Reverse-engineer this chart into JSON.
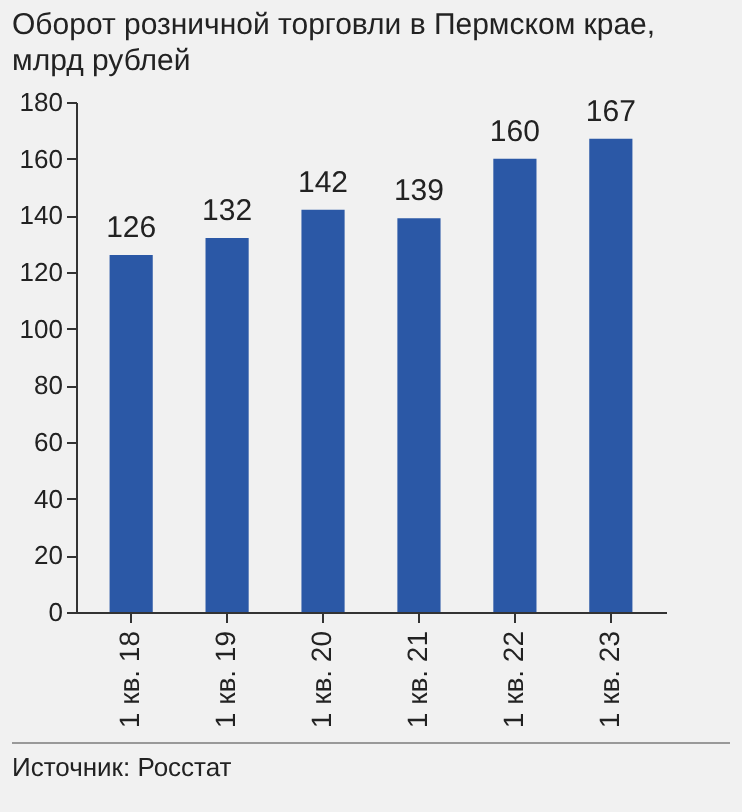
{
  "chart_data": {
    "type": "bar",
    "title": "Оборот розничной торговли в Пермском крае, млрд рублей",
    "categories": [
      "1 кв. 18",
      "1 кв. 19",
      "1 кв. 20",
      "1 кв. 21",
      "1 кв. 22",
      "1 кв. 23"
    ],
    "values": [
      126,
      132,
      142,
      139,
      160,
      167
    ],
    "color": "#2b58a6",
    "ylim": [
      0,
      180
    ],
    "yticks": [
      0,
      20,
      40,
      60,
      80,
      100,
      120,
      140,
      160,
      180
    ],
    "grid": false,
    "data_labels": true,
    "annotations": [
      "Источник: Росстат"
    ]
  }
}
